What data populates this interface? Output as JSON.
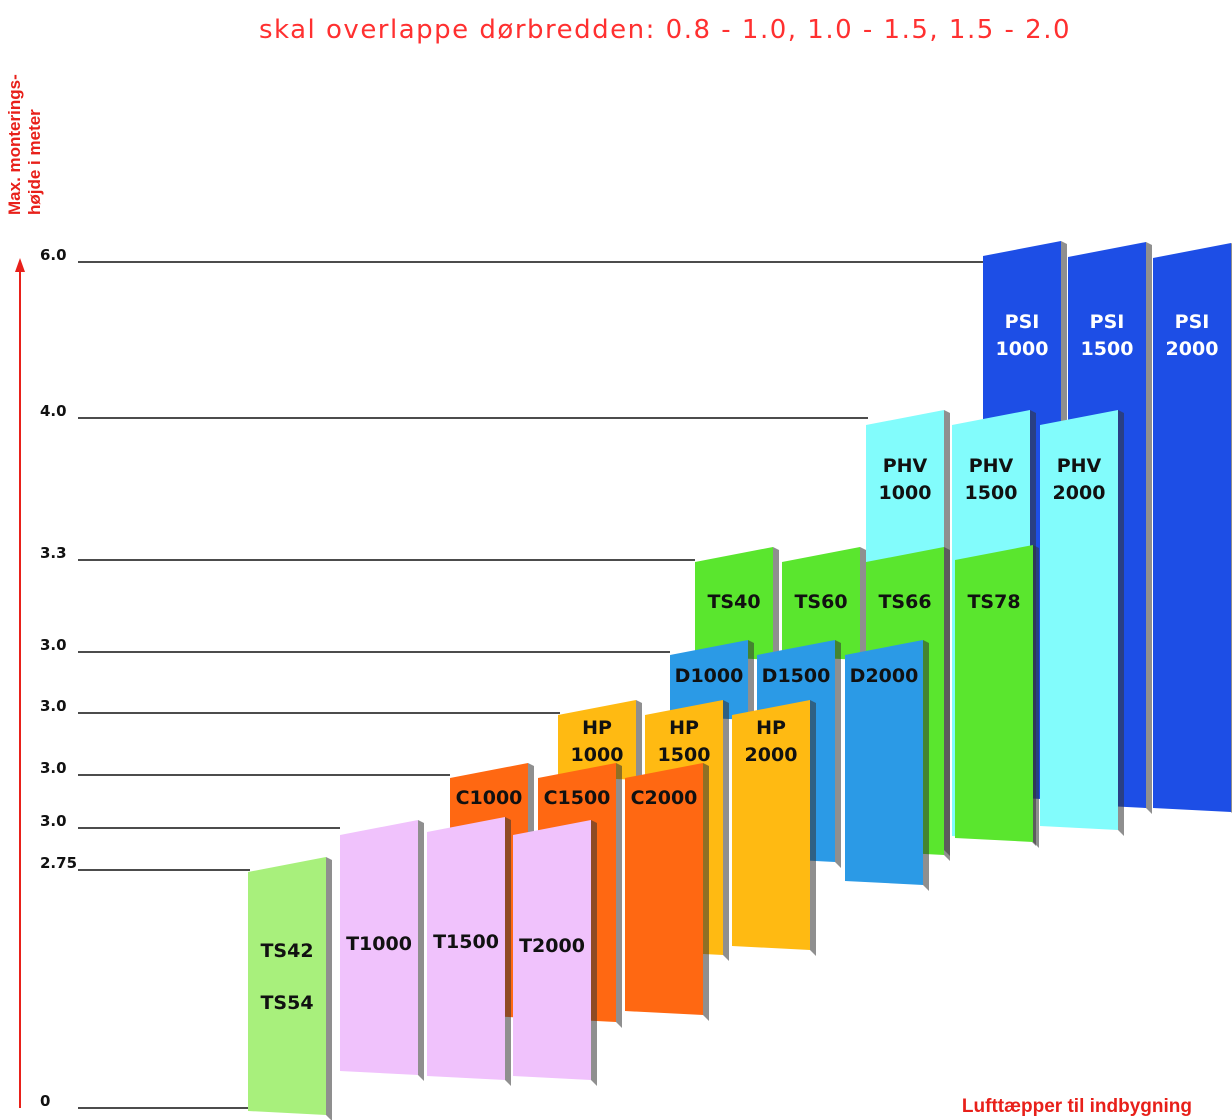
{
  "header": {
    "subtitle": "skal overlappe dørbredden: 0.8 - 1.0, 1.0 - 1.5, 1.5 - 2.0"
  },
  "axis_label": [
    "Max. monterings-",
    "højde i meter"
  ],
  "levels": [
    "6.0",
    "4.0",
    "3.3",
    "3.0",
    "3.0",
    "3.0",
    "3.0",
    "2.75",
    "0"
  ],
  "panels": [
    {
      "lines": [
        "PSI",
        "1000"
      ]
    },
    {
      "lines": [
        "PSI",
        "1500"
      ]
    },
    {
      "lines": [
        "PSI",
        "2000"
      ]
    },
    {
      "lines": [
        "PHV",
        "1000"
      ]
    },
    {
      "lines": [
        "PHV",
        "1500"
      ]
    },
    {
      "lines": [
        "PHV",
        "2000"
      ]
    },
    {
      "lines": [
        "TS40"
      ]
    },
    {
      "lines": [
        "TS60"
      ]
    },
    {
      "lines": [
        "TS66"
      ]
    },
    {
      "lines": [
        "TS78"
      ]
    },
    {
      "lines": [
        "D1000"
      ]
    },
    {
      "lines": [
        "D1500"
      ]
    },
    {
      "lines": [
        "D2000"
      ]
    },
    {
      "lines": [
        "HP",
        "1000"
      ]
    },
    {
      "lines": [
        "HP",
        "1500"
      ]
    },
    {
      "lines": [
        "HP",
        "2000"
      ]
    },
    {
      "lines": [
        "C1000"
      ]
    },
    {
      "lines": [
        "C1500"
      ]
    },
    {
      "lines": [
        "C2000"
      ]
    },
    {
      "lines": [
        "T1000"
      ]
    },
    {
      "lines": [
        "T1500"
      ]
    },
    {
      "lines": [
        "T2000"
      ]
    },
    {
      "lines": [
        "TS42",
        "TS54"
      ]
    }
  ],
  "footer": "Lufttæpper til indbygning"
}
